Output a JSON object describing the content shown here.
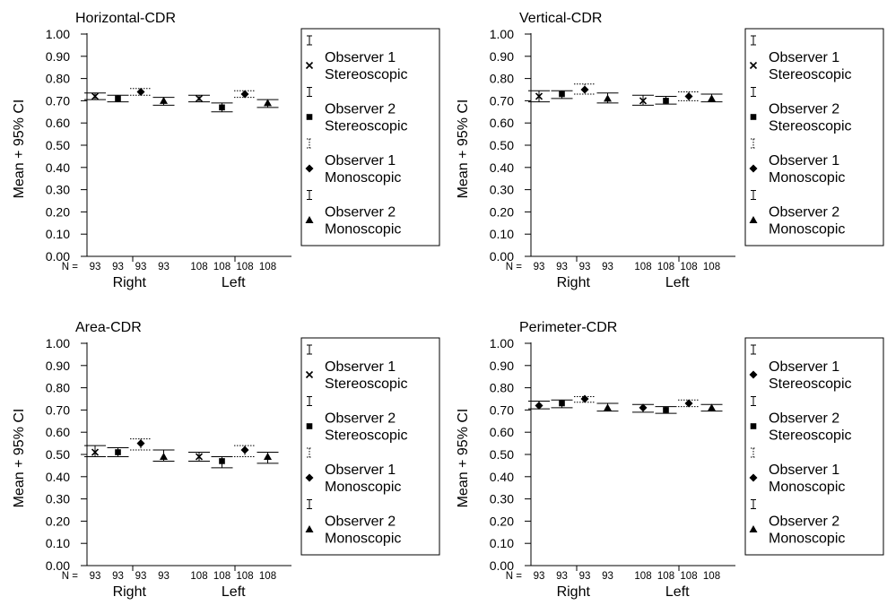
{
  "chart_data": [
    {
      "type": "errorbar",
      "title": "Horizontal-CDR",
      "ylabel": "Mean + 95% CI",
      "ylim": [
        0,
        1
      ],
      "yticks": [
        "0.00",
        "0.10",
        "0.20",
        "0.30",
        "0.40",
        "0.50",
        "0.60",
        "0.70",
        "0.80",
        "0.90",
        "1.00"
      ],
      "n_prefix": "N =",
      "groups": [
        {
          "name": "Right",
          "n": [
            "93",
            "93",
            "93",
            "93"
          ]
        },
        {
          "name": "Left",
          "n": [
            "108",
            "108",
            "108",
            "108"
          ]
        }
      ],
      "series": [
        {
          "name": "Observer 1 Stereoscopic",
          "marker": "cross",
          "style": "solid",
          "mean": [
            0.72,
            0.71
          ],
          "lower": [
            0.705,
            0.695
          ],
          "upper": [
            0.735,
            0.725
          ]
        },
        {
          "name": "Observer 2 Stereoscopic",
          "marker": "square",
          "style": "solid",
          "mean": [
            0.71,
            0.67
          ],
          "lower": [
            0.695,
            0.65
          ],
          "upper": [
            0.725,
            0.69
          ]
        },
        {
          "name": "Observer 1 Monoscopic",
          "marker": "diamond",
          "style": "dotted",
          "mean": [
            0.74,
            0.73
          ],
          "lower": [
            0.725,
            0.715
          ],
          "upper": [
            0.755,
            0.745
          ]
        },
        {
          "name": "Observer 2 Monoscopic",
          "marker": "triangle",
          "style": "solid",
          "mean": [
            0.7,
            0.69
          ],
          "lower": [
            0.68,
            0.67
          ],
          "upper": [
            0.715,
            0.705
          ]
        }
      ]
    },
    {
      "type": "errorbar",
      "title": "Vertical-CDR",
      "ylabel": "Mean + 95% CI",
      "ylim": [
        0,
        1
      ],
      "yticks": [
        "0.00",
        "0.10",
        "0.20",
        "0.30",
        "0.40",
        "0.50",
        "0.60",
        "0.70",
        "0.80",
        "0.90",
        "1.00"
      ],
      "n_prefix": "N =",
      "groups": [
        {
          "name": "Right",
          "n": [
            "93",
            "93",
            "93",
            "93"
          ]
        },
        {
          "name": "Left",
          "n": [
            "108",
            "108",
            "108",
            "108"
          ]
        }
      ],
      "series": [
        {
          "name": "Observer 1 Stereoscopic",
          "marker": "cross",
          "style": "solid",
          "mean": [
            0.72,
            0.7
          ],
          "lower": [
            0.695,
            0.68
          ],
          "upper": [
            0.745,
            0.725
          ]
        },
        {
          "name": "Observer 2 Stereoscopic",
          "marker": "square",
          "style": "solid",
          "mean": [
            0.73,
            0.7
          ],
          "lower": [
            0.71,
            0.685
          ],
          "upper": [
            0.745,
            0.72
          ]
        },
        {
          "name": "Observer 1 Monoscopic",
          "marker": "diamond",
          "style": "dotted",
          "mean": [
            0.75,
            0.72
          ],
          "lower": [
            0.73,
            0.7
          ],
          "upper": [
            0.775,
            0.74
          ]
        },
        {
          "name": "Observer 2 Monoscopic",
          "marker": "triangle",
          "style": "solid",
          "mean": [
            0.71,
            0.71
          ],
          "lower": [
            0.69,
            0.695
          ],
          "upper": [
            0.735,
            0.73
          ]
        }
      ]
    },
    {
      "type": "errorbar",
      "title": "Area-CDR",
      "ylabel": "Mean + 95% CI",
      "ylim": [
        0,
        1
      ],
      "yticks": [
        "0.00",
        "0.10",
        "0.20",
        "0.30",
        "0.40",
        "0.50",
        "0.60",
        "0.70",
        "0.80",
        "0.90",
        "1.00"
      ],
      "n_prefix": "N =",
      "groups": [
        {
          "name": "Right",
          "n": [
            "93",
            "93",
            "93",
            "93"
          ]
        },
        {
          "name": "Left",
          "n": [
            "108",
            "108",
            "108",
            "108"
          ]
        }
      ],
      "series": [
        {
          "name": "Observer 1 Stereoscopic",
          "marker": "cross",
          "style": "solid",
          "mean": [
            0.51,
            0.49
          ],
          "lower": [
            0.49,
            0.47
          ],
          "upper": [
            0.54,
            0.51
          ]
        },
        {
          "name": "Observer 2 Stereoscopic",
          "marker": "square",
          "style": "solid",
          "mean": [
            0.51,
            0.47
          ],
          "lower": [
            0.49,
            0.44
          ],
          "upper": [
            0.53,
            0.49
          ]
        },
        {
          "name": "Observer 1 Monoscopic",
          "marker": "diamond",
          "style": "dotted",
          "mean": [
            0.55,
            0.52
          ],
          "lower": [
            0.52,
            0.49
          ],
          "upper": [
            0.57,
            0.54
          ]
        },
        {
          "name": "Observer 2 Monoscopic",
          "marker": "triangle",
          "style": "solid",
          "mean": [
            0.49,
            0.49
          ],
          "lower": [
            0.47,
            0.46
          ],
          "upper": [
            0.52,
            0.51
          ]
        }
      ]
    },
    {
      "type": "errorbar",
      "title": "Perimeter-CDR",
      "ylabel": "Mean + 95% CI",
      "ylim": [
        0,
        1
      ],
      "yticks": [
        "0.00",
        "0.10",
        "0.20",
        "0.30",
        "0.40",
        "0.50",
        "0.60",
        "0.70",
        "0.80",
        "0.90",
        "1.00"
      ],
      "n_prefix": "N =",
      "groups": [
        {
          "name": "Right",
          "n": [
            "93",
            "93",
            "93",
            "93"
          ]
        },
        {
          "name": "Left",
          "n": [
            "108",
            "108",
            "108",
            "108"
          ]
        }
      ],
      "series": [
        {
          "name": "Observer 1 Stereoscopic",
          "marker": "diamond",
          "style": "solid",
          "mean": [
            0.72,
            0.71
          ],
          "lower": [
            0.705,
            0.69
          ],
          "upper": [
            0.74,
            0.725
          ]
        },
        {
          "name": "Observer 2 Stereoscopic",
          "marker": "square",
          "style": "solid",
          "mean": [
            0.73,
            0.7
          ],
          "lower": [
            0.71,
            0.685
          ],
          "upper": [
            0.745,
            0.715
          ]
        },
        {
          "name": "Observer 1 Monoscopic",
          "marker": "diamond",
          "style": "dotted",
          "mean": [
            0.75,
            0.73
          ],
          "lower": [
            0.735,
            0.715
          ],
          "upper": [
            0.76,
            0.745
          ]
        },
        {
          "name": "Observer 2 Monoscopic",
          "marker": "triangle",
          "style": "solid",
          "mean": [
            0.71,
            0.71
          ],
          "lower": [
            0.695,
            0.695
          ],
          "upper": [
            0.73,
            0.725
          ]
        }
      ]
    }
  ]
}
